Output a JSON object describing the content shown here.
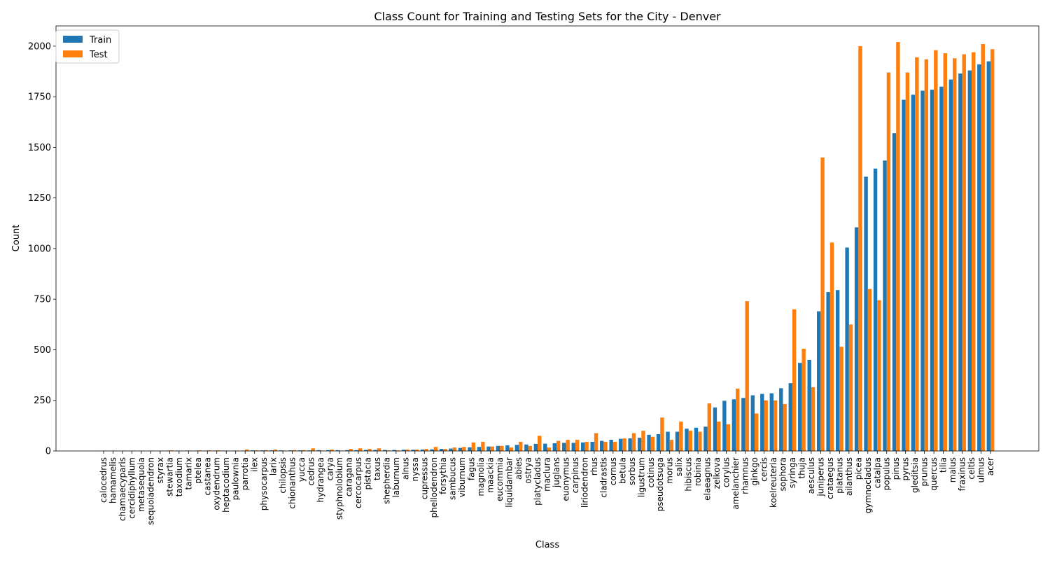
{
  "chart_data": {
    "type": "bar",
    "title": "Class Count for Training and Testing Sets for the City - Denver",
    "xlabel": "Class",
    "ylabel": "Count",
    "ylim": [
      0,
      2100
    ],
    "yticks": [
      0,
      250,
      500,
      750,
      1000,
      1250,
      1500,
      1750,
      2000
    ],
    "grid": false,
    "legend": "top-left",
    "colors": {
      "Train": "#1f77b4",
      "Test": "#ff7f0e"
    },
    "categories": [
      "calocedrus",
      "hamamelis",
      "chamaecyparis",
      "cercidiphyllum",
      "metasequoia",
      "sequoiadendron",
      "styrax",
      "stewartia",
      "taxodium",
      "tamarix",
      "ptelea",
      "castanea",
      "oxydendrum",
      "heptacodium",
      "paulownia",
      "parrotia",
      "ilex",
      "physocarpus",
      "larix",
      "chilopsis",
      "chionanthus",
      "yucca",
      "cedrus",
      "hydrangea",
      "carya",
      "styphnolobium",
      "caragana",
      "cercocarpus",
      "pistacia",
      "taxus",
      "shepherdia",
      "laburnum",
      "alnus",
      "nyssa",
      "cupressus",
      "phellodendron",
      "forsythia",
      "sambucus",
      "viburnum",
      "fagus",
      "magnolia",
      "maackia",
      "eucommia",
      "liquidambar",
      "abies",
      "ostrya",
      "platycladus",
      "maclura",
      "juglans",
      "euonymus",
      "carpinus",
      "liriodendron",
      "rhus",
      "cladrastis",
      "cornus",
      "betula",
      "sorbus",
      "ligustrum",
      "cotinus",
      "pseudotsuga",
      "morus",
      "salix",
      "hibiscus",
      "robinia",
      "elaeagnus",
      "zelkova",
      "corylus",
      "amelanchier",
      "rhamnus",
      "ginkgo",
      "cercis",
      "koelreuteria",
      "sophora",
      "syringa",
      "thuja",
      "aesculus",
      "juniperus",
      "crataegus",
      "platanus",
      "ailanthus",
      "picea",
      "gymnocladus",
      "catalpa",
      "populus",
      "pinus",
      "pyrus",
      "gleditsia",
      "prunus",
      "quercus",
      "tilia",
      "malus",
      "fraxinus",
      "celtis",
      "ulmus",
      "acer"
    ],
    "series": [
      {
        "name": "Train",
        "values": [
          1,
          1,
          1,
          1,
          1,
          1,
          1,
          2,
          2,
          2,
          2,
          2,
          2,
          2,
          2,
          2,
          3,
          3,
          3,
          3,
          3,
          3,
          3,
          4,
          4,
          4,
          4,
          4,
          5,
          5,
          5,
          5,
          6,
          6,
          7,
          8,
          10,
          12,
          15,
          18,
          20,
          22,
          25,
          28,
          30,
          32,
          35,
          36,
          38,
          40,
          40,
          42,
          45,
          50,
          55,
          60,
          62,
          65,
          80,
          83,
          95,
          95,
          110,
          115,
          120,
          215,
          248,
          255,
          262,
          275,
          282,
          285,
          310,
          335,
          435,
          450,
          690,
          785,
          795,
          1005,
          1105,
          1355,
          1395,
          1435,
          1570,
          1735,
          1760,
          1780,
          1785,
          1800,
          1835,
          1865,
          1880,
          1910,
          1925
        ]
      },
      {
        "name": "Test",
        "values": [
          2,
          2,
          2,
          2,
          2,
          2,
          2,
          3,
          2,
          2,
          3,
          3,
          3,
          2,
          2,
          7,
          3,
          4,
          7,
          2,
          4,
          4,
          13,
          2,
          7,
          2,
          10,
          13,
          10,
          13,
          3,
          3,
          7,
          7,
          10,
          20,
          10,
          17,
          20,
          42,
          45,
          22,
          25,
          17,
          45,
          25,
          75,
          17,
          50,
          55,
          55,
          45,
          88,
          45,
          45,
          62,
          88,
          100,
          70,
          165,
          55,
          145,
          100,
          95,
          235,
          145,
          132,
          308,
          740,
          185,
          250,
          250,
          232,
          700,
          505,
          315,
          1450,
          1030,
          515,
          625,
          2000,
          800,
          745,
          1870,
          2020,
          1870,
          1945,
          1935,
          1980,
          1965,
          1940,
          1960,
          1970,
          2010,
          1985
        ]
      }
    ]
  }
}
